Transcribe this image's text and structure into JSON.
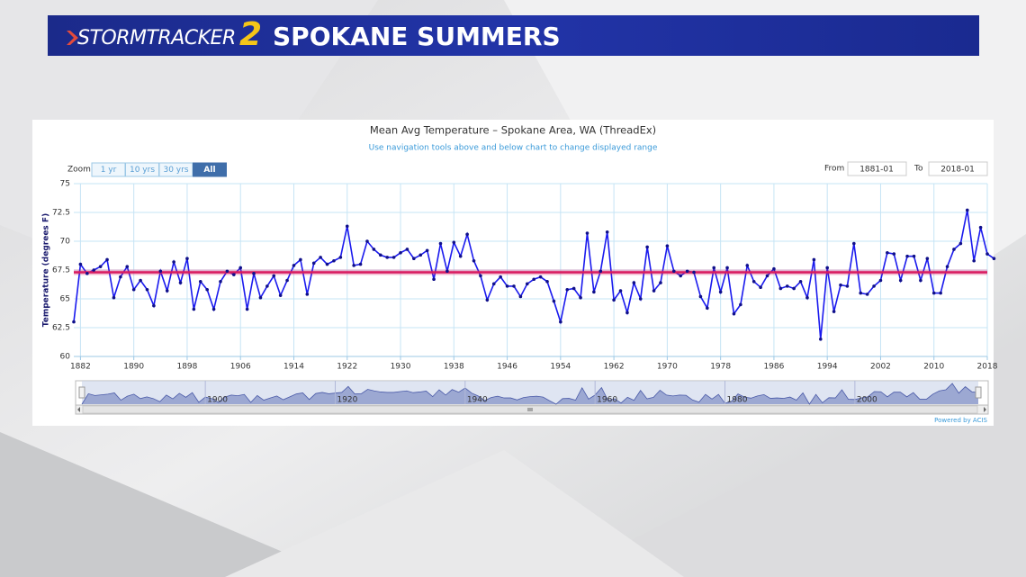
{
  "header": {
    "brand": "StormTracker",
    "brand_number": "2",
    "title": "SPOKANE SUMMERS"
  },
  "chart_data": {
    "type": "line",
    "title": "Mean Avg Temperature – Spokane Area, WA (ThreadEx)",
    "subtitle": "Use navigation tools above and below chart to change displayed range",
    "zoom_label": "Zoom",
    "zoom_buttons": [
      "1 yr",
      "10 yrs",
      "30 yrs",
      "All"
    ],
    "selected_zoom": 3,
    "from_label": "From",
    "from_value": "1881-01",
    "to_label": "To",
    "to_value": "2018-01",
    "y_label": "Temperature (degrees F)",
    "credit": "Powered by ACIS",
    "x": [
      1881,
      1882,
      1883,
      1884,
      1885,
      1886,
      1887,
      1888,
      1889,
      1890,
      1891,
      1892,
      1893,
      1894,
      1895,
      1896,
      1897,
      1898,
      1899,
      1900,
      1901,
      1902,
      1903,
      1904,
      1905,
      1906,
      1907,
      1908,
      1909,
      1910,
      1911,
      1912,
      1913,
      1914,
      1915,
      1916,
      1917,
      1918,
      1919,
      1920,
      1921,
      1922,
      1923,
      1924,
      1925,
      1926,
      1927,
      1928,
      1929,
      1930,
      1931,
      1932,
      1933,
      1934,
      1935,
      1936,
      1937,
      1938,
      1939,
      1940,
      1941,
      1942,
      1943,
      1944,
      1945,
      1946,
      1947,
      1948,
      1949,
      1950,
      1951,
      1952,
      1953,
      1954,
      1955,
      1956,
      1957,
      1958,
      1959,
      1960,
      1961,
      1962,
      1963,
      1964,
      1965,
      1966,
      1967,
      1968,
      1969,
      1970,
      1971,
      1972,
      1973,
      1974,
      1975,
      1976,
      1977,
      1978,
      1979,
      1980,
      1981,
      1982,
      1983,
      1984,
      1985,
      1986,
      1987,
      1988,
      1989,
      1990,
      1991,
      1992,
      1993,
      1994,
      1995,
      1996,
      1997,
      1998,
      1999,
      2000,
      2001,
      2002,
      2003,
      2004,
      2005,
      2006,
      2007,
      2008,
      2009,
      2010,
      2011,
      2012,
      2013,
      2014,
      2015,
      2016,
      2017,
      2018,
      2019
    ],
    "series": [
      {
        "color": "#1a1aee",
        "values": [
          63.0,
          68.0,
          67.2,
          67.5,
          67.8,
          68.4,
          65.1,
          66.9,
          67.8,
          65.8,
          66.6,
          65.8,
          64.4,
          67.4,
          65.7,
          68.2,
          66.4,
          68.5,
          64.1,
          66.5,
          65.8,
          64.1,
          66.5,
          67.4,
          67.1,
          67.7,
          64.1,
          67.2,
          65.1,
          66.1,
          67.0,
          65.3,
          66.6,
          67.9,
          68.4,
          65.4,
          68.1,
          68.6,
          68.0,
          68.3,
          68.6,
          71.3,
          67.9,
          68.0,
          70.0,
          69.3,
          68.8,
          68.6,
          68.6,
          69.0,
          69.3,
          68.5,
          68.8,
          69.2,
          66.7,
          69.8,
          67.4,
          69.9,
          68.7,
          70.6,
          68.3,
          67.0,
          64.9,
          66.3,
          66.9,
          66.1,
          66.1,
          65.2,
          66.3,
          66.7,
          66.9,
          66.5,
          64.8,
          63.0,
          65.8,
          65.9,
          65.1,
          70.7,
          65.6,
          67.4,
          70.8,
          64.9,
          65.7,
          63.8,
          66.4,
          65.0,
          69.5,
          65.7,
          66.4,
          69.6,
          67.4,
          67.0,
          67.4,
          67.3,
          65.2,
          64.2,
          67.7,
          65.6,
          67.7,
          63.7,
          64.5,
          67.9,
          66.5,
          66.0,
          67.0,
          67.6,
          65.9,
          66.1,
          65.9,
          66.5,
          65.1,
          68.4,
          61.5,
          67.7,
          63.9,
          66.2,
          66.1,
          69.8,
          65.5,
          65.4,
          66.1,
          66.6,
          69.0,
          68.9,
          66.6,
          68.7,
          68.7,
          66.6,
          68.5,
          65.5,
          65.5,
          67.8,
          69.3,
          69.8,
          72.7,
          68.3,
          71.2,
          68.9,
          68.5
        ]
      }
    ],
    "xlim": [
      1881,
      2018
    ],
    "ylim": [
      60,
      75
    ],
    "xticks": [
      1882,
      1890,
      1898,
      1906,
      1914,
      1922,
      1930,
      1938,
      1946,
      1954,
      1962,
      1970,
      1978,
      1986,
      1994,
      2002,
      2010,
      2018
    ],
    "yticks": [
      60,
      62.5,
      65,
      67.5,
      70,
      72.5,
      75
    ],
    "grid": true,
    "reference_line": {
      "value": 67.3,
      "color": "#d81b60"
    },
    "navigator": {
      "xticks": [
        1900,
        1920,
        1940,
        1960,
        1980,
        2000
      ]
    }
  }
}
